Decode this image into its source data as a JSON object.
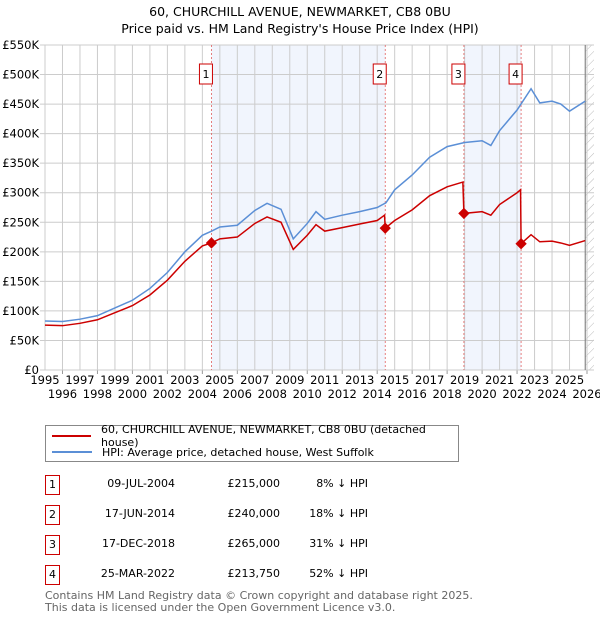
{
  "chart_data": {
    "type": "line",
    "title": "60, CHURCHILL AVENUE, NEWMARKET, CB8 0BU",
    "subtitle": "Price paid vs. HM Land Registry's House Price Index (HPI)",
    "xlim": [
      1995,
      2026
    ],
    "ylim": [
      0,
      550000
    ],
    "x_ticks": [
      "1995",
      "1996",
      "1997",
      "1998",
      "1999",
      "2000",
      "2001",
      "2002",
      "2003",
      "2004",
      "2005",
      "2006",
      "2007",
      "2008",
      "2009",
      "2010",
      "2011",
      "2012",
      "2013",
      "2014",
      "2015",
      "2016",
      "2017",
      "2018",
      "2019",
      "2020",
      "2021",
      "2022",
      "2023",
      "2024",
      "2025",
      "2026"
    ],
    "y_ticks": [
      {
        "value": 0,
        "label": "£0"
      },
      {
        "value": 50000,
        "label": "£50K"
      },
      {
        "value": 100000,
        "label": "£100K"
      },
      {
        "value": 150000,
        "label": "£150K"
      },
      {
        "value": 200000,
        "label": "£200K"
      },
      {
        "value": 250000,
        "label": "£250K"
      },
      {
        "value": 300000,
        "label": "£300K"
      },
      {
        "value": 350000,
        "label": "£350K"
      },
      {
        "value": 400000,
        "label": "£400K"
      },
      {
        "value": 450000,
        "label": "£450K"
      },
      {
        "value": 500000,
        "label": "£500K"
      },
      {
        "value": 550000,
        "label": "£550K"
      }
    ],
    "grid": true,
    "forecast_start": 2025.9,
    "shaded_ranges": [
      [
        2004.52,
        2014.46
      ],
      [
        2018.96,
        2022.23
      ]
    ],
    "series": [
      {
        "name": "60, CHURCHILL AVENUE, NEWMARKET, CB8 0BU (detached house)",
        "color": "#cc0000",
        "points": [
          [
            1995,
            76
          ],
          [
            1996,
            75
          ],
          [
            1997,
            79
          ],
          [
            1998,
            85
          ],
          [
            1999,
            97
          ],
          [
            2000,
            109
          ],
          [
            2001,
            127
          ],
          [
            2002,
            152
          ],
          [
            2003,
            184
          ],
          [
            2004,
            210
          ],
          [
            2004.52,
            215
          ],
          [
            2005,
            222
          ],
          [
            2006,
            225
          ],
          [
            2007,
            248
          ],
          [
            2007.7,
            259
          ],
          [
            2008.5,
            250
          ],
          [
            2009.2,
            204
          ],
          [
            2010,
            228
          ],
          [
            2010.5,
            246
          ],
          [
            2011,
            235
          ],
          [
            2012,
            241
          ],
          [
            2013,
            247
          ],
          [
            2014,
            253
          ],
          [
            2014.42,
            262
          ],
          [
            2014.46,
            240
          ],
          [
            2015,
            253
          ],
          [
            2016,
            271
          ],
          [
            2017,
            295
          ],
          [
            2018,
            310
          ],
          [
            2018.9,
            318
          ],
          [
            2018.96,
            265
          ],
          [
            2020,
            268
          ],
          [
            2020.5,
            262
          ],
          [
            2021,
            280
          ],
          [
            2022,
            300
          ],
          [
            2022.2,
            305
          ],
          [
            2022.23,
            213.75
          ],
          [
            2022.8,
            229
          ],
          [
            2023.3,
            217
          ],
          [
            2024,
            218
          ],
          [
            2024.5,
            215
          ],
          [
            2025,
            211
          ],
          [
            2025.9,
            219
          ]
        ]
      },
      {
        "name": "HPI: Average price, detached house, West Suffolk",
        "color": "#5b8fd6",
        "points": [
          [
            1995,
            83
          ],
          [
            1996,
            82
          ],
          [
            1997,
            86
          ],
          [
            1998,
            92
          ],
          [
            1999,
            105
          ],
          [
            2000,
            118
          ],
          [
            2001,
            138
          ],
          [
            2002,
            165
          ],
          [
            2003,
            200
          ],
          [
            2004,
            228
          ],
          [
            2004.52,
            235
          ],
          [
            2005,
            242
          ],
          [
            2006,
            245
          ],
          [
            2007,
            270
          ],
          [
            2007.7,
            282
          ],
          [
            2008.5,
            272
          ],
          [
            2009.2,
            222
          ],
          [
            2010,
            248
          ],
          [
            2010.5,
            268
          ],
          [
            2011,
            255
          ],
          [
            2012,
            262
          ],
          [
            2013,
            268
          ],
          [
            2014,
            275
          ],
          [
            2014.5,
            283
          ],
          [
            2015,
            305
          ],
          [
            2016,
            330
          ],
          [
            2017,
            360
          ],
          [
            2018,
            378
          ],
          [
            2019,
            385
          ],
          [
            2020,
            388
          ],
          [
            2020.5,
            380
          ],
          [
            2021,
            405
          ],
          [
            2022,
            440
          ],
          [
            2022.8,
            476
          ],
          [
            2023.3,
            452
          ],
          [
            2024,
            455
          ],
          [
            2024.5,
            450
          ],
          [
            2025,
            438
          ],
          [
            2025.9,
            455
          ]
        ]
      }
    ],
    "sales": [
      {
        "num": "1",
        "x": 2004.52,
        "value": 215000,
        "date": "09-JUL-2004",
        "price": "£215,000",
        "hpi": "8% ↓ HPI"
      },
      {
        "num": "2",
        "x": 2014.46,
        "value": 240000,
        "date": "17-JUN-2014",
        "price": "£240,000",
        "hpi": "18% ↓ HPI"
      },
      {
        "num": "3",
        "x": 2018.96,
        "value": 265000,
        "date": "17-DEC-2018",
        "price": "£265,000",
        "hpi": "31% ↓ HPI"
      },
      {
        "num": "4",
        "x": 2022.23,
        "value": 213750,
        "date": "25-MAR-2022",
        "price": "£213,750",
        "hpi": "52% ↓ HPI"
      }
    ]
  },
  "legend": {
    "red_label": "60, CHURCHILL AVENUE, NEWMARKET, CB8 0BU (detached house)",
    "blue_label": "HPI: Average price, detached house, West Suffolk"
  },
  "footer": {
    "line1": "Contains HM Land Registry data © Crown copyright and database right 2025.",
    "line2": "This data is licensed under the Open Government Licence v3.0."
  }
}
